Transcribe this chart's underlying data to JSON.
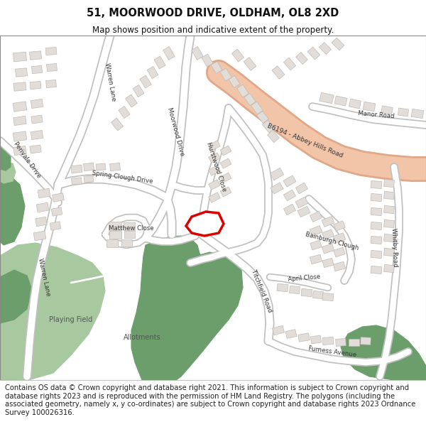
{
  "title": "51, MOORWOOD DRIVE, OLDHAM, OL8 2XD",
  "subtitle": "Map shows position and indicative extent of the property.",
  "footer": "Contains OS data © Crown copyright and database right 2021. This information is subject to Crown copyright and database rights 2023 and is reproduced with the permission of HM Land Registry. The polygons (including the associated geometry, namely x, y co-ordinates) are subject to Crown copyright and database rights 2023 Ordnance Survey 100026316.",
  "title_fontsize": 10.5,
  "subtitle_fontsize": 8.5,
  "footer_fontsize": 7.2,
  "map_bg_color": "#f0eeeb",
  "road_color": "#ffffff",
  "road_stroke": "#c8c8c8",
  "b6194_fill": "#f2c4a8",
  "b6194_stroke": "#e0a888",
  "green_color": "#6b9e6b",
  "light_green_color": "#a8c8a0",
  "building_color": "#e2ddd8",
  "building_stroke": "#c0bbb5",
  "red_polygon_color": "#dd0000",
  "header_bg": "#ffffff",
  "footer_bg": "#ffffff"
}
